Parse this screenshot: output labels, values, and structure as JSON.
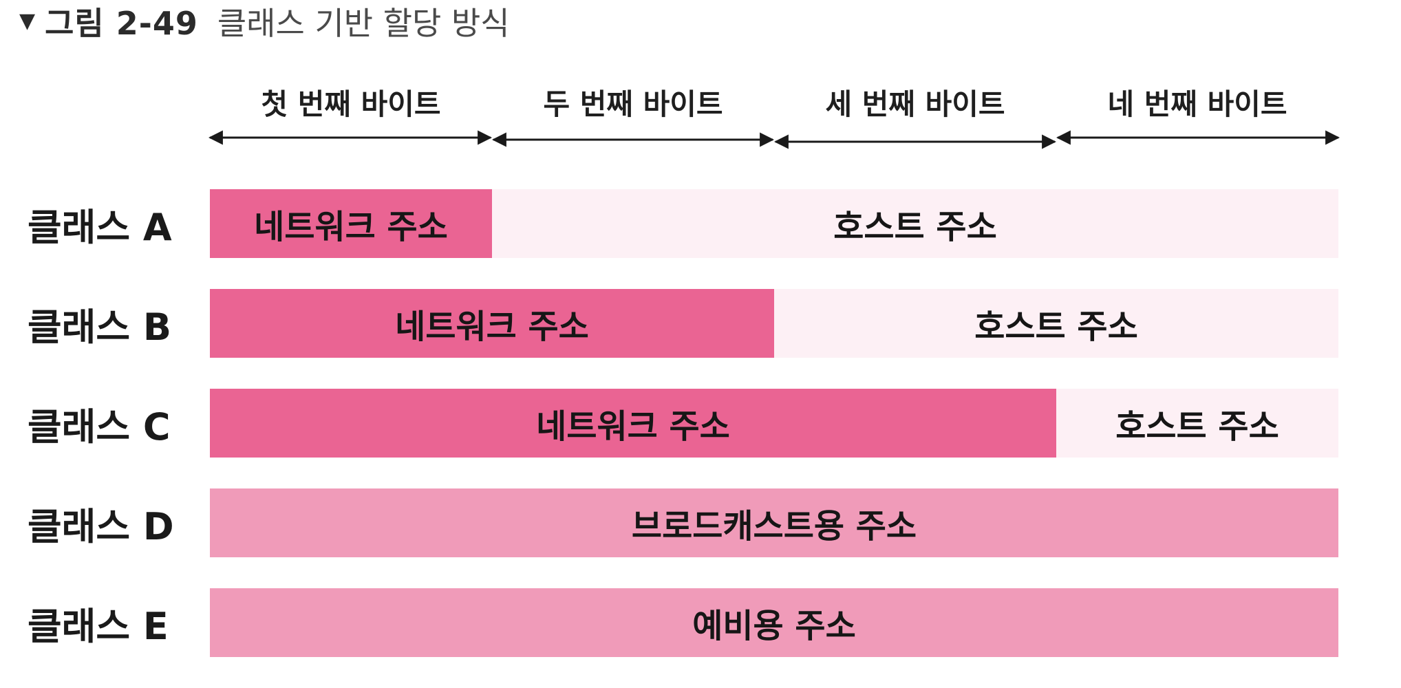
{
  "caption": {
    "number": "그림 2-49",
    "title": "클래스 기반 할당 방식"
  },
  "bytes": [
    "첫 번째 바이트",
    "두 번째 바이트",
    "세 번째 바이트",
    "네 번째 바이트"
  ],
  "classes": [
    {
      "name": "클래스 A",
      "network_label": "네트워크 주소",
      "host_label": "호스트 주소",
      "network_bytes": 1
    },
    {
      "name": "클래스 B",
      "network_label": "네트워크 주소",
      "host_label": "호스트 주소",
      "network_bytes": 2
    },
    {
      "name": "클래스 C",
      "network_label": "네트워크 주소",
      "host_label": "호스트 주소",
      "network_bytes": 3
    },
    {
      "name": "클래스 D",
      "label": "브로드캐스트용 주소"
    },
    {
      "name": "클래스 E",
      "label": "예비용 주소"
    }
  ],
  "colors": {
    "network": "#ea6493",
    "host": "#fdf0f5",
    "full": "#f09bb9"
  }
}
